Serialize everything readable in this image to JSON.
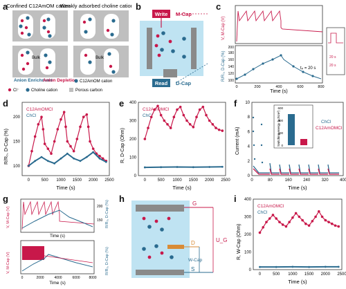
{
  "panels": {
    "a": {
      "label": "a",
      "col1_title": "Confined C12AmOM cation",
      "col2_title": "Weakly adsorbed choline cation",
      "bulk1": "Bulk",
      "bulk2": "Bulk",
      "enrich": "Anion Enrichment",
      "deplete": "Anion Depletion",
      "legend_c12": "C12AmOM cation",
      "legend_cl": "Cl⁻",
      "legend_choline": "Choline cation",
      "legend_carbon": "Porous carbon"
    },
    "b": {
      "label": "b",
      "write": "Write",
      "read": "Read",
      "mcap": "M-Cap",
      "dcap": "D-Cap"
    },
    "c": {
      "label": "c",
      "ylabel_top": "V, M-Cap (V)",
      "ylabel_bot": "R/R₀, D-Cap (%)",
      "xlabel": "Time (s)",
      "tp": "tₚ = 20 s",
      "inset_a": "20 s",
      "inset_b": "20 s",
      "yticks_bot": [
        "100",
        "120",
        "140",
        "160",
        "180",
        "200"
      ],
      "xticks": [
        "0",
        "200",
        "400",
        "600",
        "800"
      ]
    },
    "d": {
      "label": "d",
      "ylabel": "R/R₀, D-Cap (%)",
      "xlabel": "Time (s)",
      "leg1": "C12AmOMCl",
      "leg2": "ChCl",
      "yticks": [
        "100",
        "150",
        "200"
      ],
      "xticks": [
        "0",
        "500",
        "1000",
        "1500",
        "2000",
        "2500"
      ]
    },
    "e": {
      "label": "e",
      "ylabel": "R, D-Cap (Ohm)",
      "xlabel": "Time (s)",
      "leg1": "C12AmOMCl",
      "leg2": "ChCl",
      "yticks": [
        "0",
        "100",
        "200",
        "300",
        "400"
      ],
      "xticks": [
        "0",
        "500",
        "1000",
        "1500",
        "2000",
        "2500"
      ]
    },
    "f": {
      "label": "f",
      "ylabel": "Current (mA)",
      "xlabel": "Time (s)",
      "leg1": "ChCl",
      "leg2": "C12AmOMCl",
      "inset_ylabel": "Switching energy (μJ/cm²)",
      "inset_ticks": [
        "0",
        "200",
        "400",
        "600"
      ],
      "yticks": [
        "0",
        "2",
        "4",
        "6",
        "8",
        "10"
      ],
      "xticks": [
        "0",
        "80",
        "160",
        "240",
        "320",
        "400"
      ]
    },
    "g": {
      "label": "g",
      "ylabel_top": "V, M-Cap (V)",
      "ylabel_top_r": "R/R₀, D-Cap (%)",
      "ylabel_bot": "V, M-Cap (V)",
      "ylabel_bot_r": "R/R₀, D-Cap (%)",
      "xlabel_top": "Time (s)",
      "xlabel_bot": "Time (s)",
      "xticks_top": [
        "0",
        "200",
        "400",
        "600",
        "800"
      ],
      "xticks_bot": [
        "0",
        "2000",
        "4000",
        "6000",
        "8000"
      ],
      "yticks_top_r": [
        "150",
        "200"
      ],
      "yticks_bot_r": [
        "100",
        "150",
        "200",
        "250",
        "300"
      ]
    },
    "h": {
      "label": "h",
      "g": "G",
      "d": "D",
      "s": "S",
      "wcap": "W-Cap",
      "ug": "U_G"
    },
    "i": {
      "label": "i",
      "ylabel": "R, W-Cap (Ohm)",
      "xlabel": "Time (s)",
      "leg1": "C12AmOMCl",
      "leg2": "ChCl",
      "yticks": [
        "0",
        "100",
        "200",
        "300",
        "400"
      ],
      "xticks": [
        "0",
        "500",
        "1000",
        "1500",
        "2000",
        "2500"
      ]
    }
  },
  "colors": {
    "red": "#c8184a",
    "blue": "#2a6b8f",
    "box": "#bfe3f2",
    "gray": "#bfbfbf"
  },
  "chart_data": [
    {
      "type": "line",
      "panel": "d",
      "xlabel": "Time (s)",
      "ylabel": "R/R₀, D-Cap (%)",
      "xlim": [
        -200,
        2500
      ],
      "ylim": [
        80,
        230
      ],
      "series": [
        {
          "name": "C12AmOMCl",
          "x": [
            0,
            100,
            200,
            300,
            400,
            450,
            500,
            600,
            700,
            800,
            900,
            1000,
            1100,
            1150,
            1200,
            1300,
            1400,
            1500,
            1600,
            1700,
            1800,
            1850,
            1900,
            2000,
            2100,
            2200,
            2300,
            2400
          ],
          "y": [
            100,
            130,
            160,
            185,
            200,
            175,
            145,
            135,
            125,
            150,
            175,
            195,
            210,
            180,
            150,
            140,
            130,
            155,
            180,
            200,
            205,
            180,
            150,
            135,
            125,
            120,
            115,
            110
          ]
        },
        {
          "name": "ChCl",
          "x": [
            0,
            200,
            400,
            600,
            800,
            1000,
            1200,
            1400,
            1600,
            1800,
            2000,
            2200,
            2400
          ],
          "y": [
            100,
            110,
            118,
            110,
            105,
            115,
            125,
            115,
            110,
            118,
            128,
            115,
            108
          ]
        }
      ]
    },
    {
      "type": "line",
      "panel": "e",
      "xlabel": "Time (s)",
      "ylabel": "R, D-Cap (Ohm)",
      "xlim": [
        -200,
        2500
      ],
      "ylim": [
        0,
        400
      ],
      "series": [
        {
          "name": "C12AmOMCl",
          "x": [
            0,
            100,
            200,
            300,
            400,
            500,
            600,
            700,
            800,
            900,
            1000,
            1100,
            1200,
            1300,
            1400,
            1500,
            1600,
            1700,
            1800,
            1900,
            2000,
            2100,
            2200,
            2300,
            2400
          ],
          "y": [
            200,
            260,
            320,
            360,
            380,
            330,
            300,
            280,
            260,
            320,
            360,
            375,
            330,
            300,
            280,
            265,
            320,
            360,
            375,
            330,
            300,
            280,
            260,
            250,
            245
          ]
        },
        {
          "name": "ChCl",
          "x": [
            0,
            500,
            1000,
            1500,
            2000,
            2400
          ],
          "y": [
            45,
            46,
            47,
            46,
            47,
            48
          ]
        }
      ]
    },
    {
      "type": "bar",
      "panel": "f-inset",
      "ylabel": "Switching energy (μJ/cm²)",
      "categories": [
        "ChCl",
        "C12AmOMCl"
      ],
      "values": [
        500,
        100
      ],
      "ylim": [
        0,
        600
      ]
    },
    {
      "type": "line",
      "panel": "i",
      "xlabel": "Time (s)",
      "ylabel": "R, W-Cap (Ohm)",
      "xlim": [
        -200,
        2500
      ],
      "ylim": [
        0,
        400
      ],
      "series": [
        {
          "name": "C12AmOMCl",
          "x": [
            0,
            100,
            200,
            300,
            400,
            500,
            600,
            700,
            800,
            900,
            1000,
            1100,
            1200,
            1300,
            1400,
            1500,
            1600,
            1700,
            1800,
            1900,
            2000,
            2100,
            2200,
            2300,
            2400
          ],
          "y": [
            210,
            240,
            270,
            290,
            310,
            290,
            270,
            255,
            245,
            270,
            295,
            320,
            300,
            280,
            260,
            250,
            275,
            300,
            330,
            300,
            280,
            270,
            260,
            250,
            245
          ]
        },
        {
          "name": "ChCl",
          "x": [
            0,
            500,
            1000,
            1500,
            2000,
            2400
          ],
          "y": [
            15,
            15,
            16,
            15,
            16,
            16
          ]
        }
      ]
    }
  ]
}
